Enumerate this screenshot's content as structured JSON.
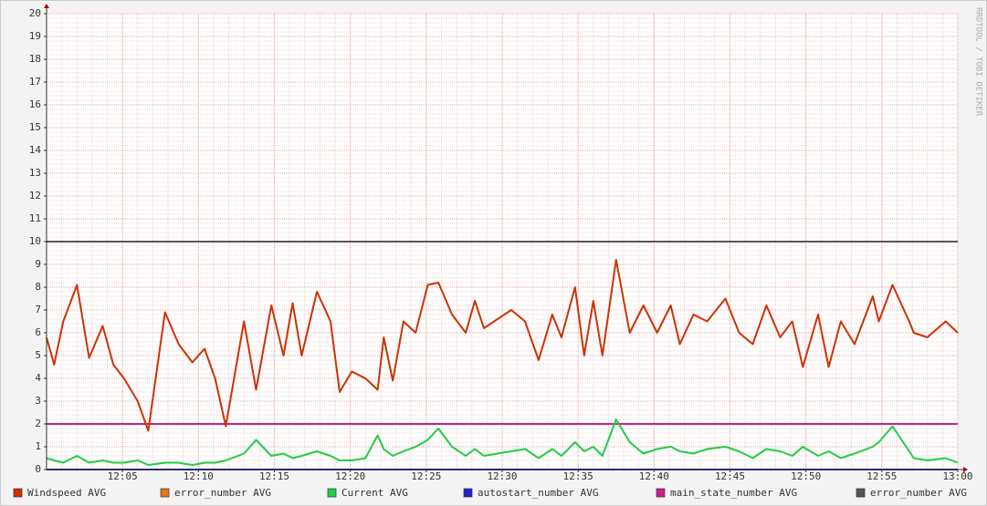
{
  "chart_data": {
    "type": "line",
    "watermark": "RRDTOOL / TOBI OETIKER",
    "xlim": [
      0,
      60
    ],
    "xticks": [
      {
        "value": 5,
        "label": "12:05"
      },
      {
        "value": 10,
        "label": "12:10"
      },
      {
        "value": 15,
        "label": "12:15"
      },
      {
        "value": 20,
        "label": "12:20"
      },
      {
        "value": 25,
        "label": "12:25"
      },
      {
        "value": 30,
        "label": "12:30"
      },
      {
        "value": 35,
        "label": "12:35"
      },
      {
        "value": 40,
        "label": "12:40"
      },
      {
        "value": 45,
        "label": "12:45"
      },
      {
        "value": 50,
        "label": "12:50"
      },
      {
        "value": 55,
        "label": "12:55"
      },
      {
        "value": 60,
        "label": "13:00"
      }
    ],
    "ylim": [
      0,
      20
    ],
    "yticks": [
      0,
      1,
      2,
      3,
      4,
      5,
      6,
      7,
      8,
      9,
      10,
      11,
      12,
      13,
      14,
      15,
      16,
      17,
      18,
      19,
      20
    ],
    "grid": true,
    "x": [
      0,
      0.5,
      1.1,
      2.0,
      2.8,
      3.7,
      4.4,
      5.1,
      6.0,
      6.7,
      7.8,
      8.7,
      9.6,
      10.4,
      11.1,
      11.8,
      13.0,
      13.8,
      14.8,
      15.6,
      16.2,
      16.8,
      17.8,
      18.7,
      19.3,
      20.1,
      21.0,
      21.8,
      22.2,
      22.8,
      23.5,
      24.3,
      25.1,
      25.8,
      26.7,
      27.6,
      28.2,
      28.8,
      29.7,
      30.6,
      31.5,
      32.4,
      33.3,
      33.9,
      34.8,
      35.4,
      36.0,
      36.6,
      37.5,
      38.4,
      39.3,
      40.2,
      41.1,
      41.7,
      42.6,
      43.5,
      44.7,
      45.6,
      46.5,
      47.4,
      48.3,
      49.1,
      49.8,
      50.8,
      51.5,
      52.3,
      53.2,
      54.4,
      54.8,
      55.7,
      56.8,
      57.1,
      58.0,
      59.2,
      60.0
    ],
    "series": [
      {
        "name": "Windspeed AVG",
        "color": "#cc3300",
        "values": [
          5.8,
          4.6,
          6.5,
          8.1,
          4.9,
          6.3,
          4.6,
          4.0,
          3.0,
          1.7,
          6.9,
          5.5,
          4.7,
          5.3,
          4.0,
          1.9,
          6.5,
          3.5,
          7.2,
          5.0,
          7.3,
          5.0,
          7.8,
          6.5,
          3.4,
          4.3,
          4.0,
          3.5,
          5.8,
          3.9,
          6.5,
          6.0,
          8.1,
          8.2,
          6.8,
          6.0,
          7.4,
          6.2,
          6.6,
          7.0,
          6.5,
          4.8,
          6.8,
          5.8,
          8.0,
          5.0,
          7.4,
          5.0,
          9.2,
          6.0,
          7.2,
          6.0,
          7.2,
          5.5,
          6.8,
          6.5,
          7.5,
          6.0,
          5.5,
          7.2,
          5.8,
          6.5,
          4.5,
          6.8,
          4.5,
          6.5,
          5.5,
          7.6,
          6.5,
          8.1,
          6.5,
          6.0,
          5.8,
          6.5,
          6.0
        ]
      },
      {
        "name": "error_number AVG",
        "color": "#e07a1f",
        "x": [
          0,
          60
        ],
        "values": [
          0,
          0
        ]
      },
      {
        "name": "Current AVG",
        "color": "#22cc44",
        "values": [
          0.5,
          0.4,
          0.3,
          0.6,
          0.3,
          0.4,
          0.3,
          0.3,
          0.4,
          0.2,
          0.3,
          0.3,
          0.2,
          0.3,
          0.3,
          0.4,
          0.7,
          1.3,
          0.6,
          0.7,
          0.5,
          0.6,
          0.8,
          0.6,
          0.4,
          0.4,
          0.5,
          1.5,
          0.9,
          0.6,
          0.8,
          1.0,
          1.3,
          1.8,
          1.0,
          0.6,
          0.9,
          0.6,
          0.7,
          0.8,
          0.9,
          0.5,
          0.9,
          0.6,
          1.2,
          0.8,
          1.0,
          0.6,
          2.2,
          1.2,
          0.7,
          0.9,
          1.0,
          0.8,
          0.7,
          0.9,
          1.0,
          0.8,
          0.5,
          0.9,
          0.8,
          0.6,
          1.0,
          0.6,
          0.8,
          0.5,
          0.7,
          1.0,
          1.2,
          1.9,
          0.8,
          0.5,
          0.4,
          0.5,
          0.3
        ]
      },
      {
        "name": "autostart_number AVG",
        "color": "#2222cc",
        "x": [
          0,
          60
        ],
        "values": [
          0,
          0
        ]
      },
      {
        "name": "main_state_number AVG",
        "color": "#cc1f8f",
        "x": [
          0,
          60
        ],
        "values": [
          2,
          2
        ]
      },
      {
        "name": "error_number AVG",
        "color": "#555555",
        "x": [
          0,
          60
        ],
        "values": [
          10,
          10
        ]
      }
    ]
  }
}
